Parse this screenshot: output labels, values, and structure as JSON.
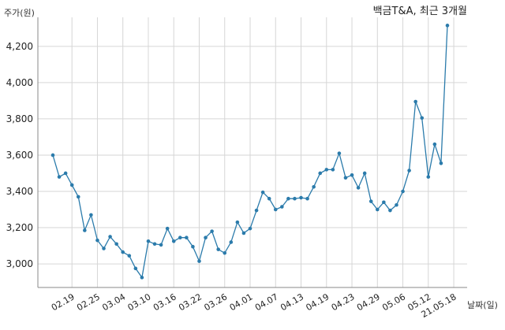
{
  "chart_data": {
    "type": "line",
    "title": "백금T&A, 최근 3개월",
    "ylabel": "주가(원)",
    "xlabel": "날짜(일)",
    "ylim": [
      2870,
      4360
    ],
    "yticks": [
      3000,
      3200,
      3400,
      3600,
      3800,
      4000,
      4200
    ],
    "ytick_labels": [
      "3,000",
      "3,200",
      "3,400",
      "3,600",
      "3,800",
      "4,000",
      "4,200"
    ],
    "xtick_labels": [
      "02.19",
      "02.25",
      "03.04",
      "03.10",
      "03.16",
      "03.22",
      "03.26",
      "04.01",
      "04.07",
      "04.13",
      "04.19",
      "04.23",
      "04.29",
      "05.06",
      "05.12",
      "21.05.18"
    ],
    "xtick_indices": [
      3,
      7,
      11,
      15,
      19,
      23,
      27,
      31,
      35,
      39,
      43,
      47,
      51,
      55,
      59,
      63
    ],
    "grid": true,
    "color": "#2b7bab",
    "series": [
      {
        "values": [
          3600,
          3480,
          3500,
          3435,
          3370,
          3185,
          3270,
          3130,
          3085,
          3150,
          3110,
          3065,
          3045,
          2975,
          2925,
          3125,
          3110,
          3105,
          3195,
          3125,
          3145,
          3145,
          3095,
          3015,
          3145,
          3180,
          3080,
          3060,
          3120,
          3230,
          3170,
          3195,
          3295,
          3395,
          3360,
          3300,
          3315,
          3360,
          3360,
          3365,
          3360,
          3425,
          3500,
          3520,
          3520,
          3610,
          3475,
          3490,
          3420,
          3500,
          3345,
          3300,
          3340,
          3295,
          3325,
          3400,
          3515,
          3895,
          3805,
          3480,
          3660,
          3555,
          4315
        ]
      }
    ]
  }
}
